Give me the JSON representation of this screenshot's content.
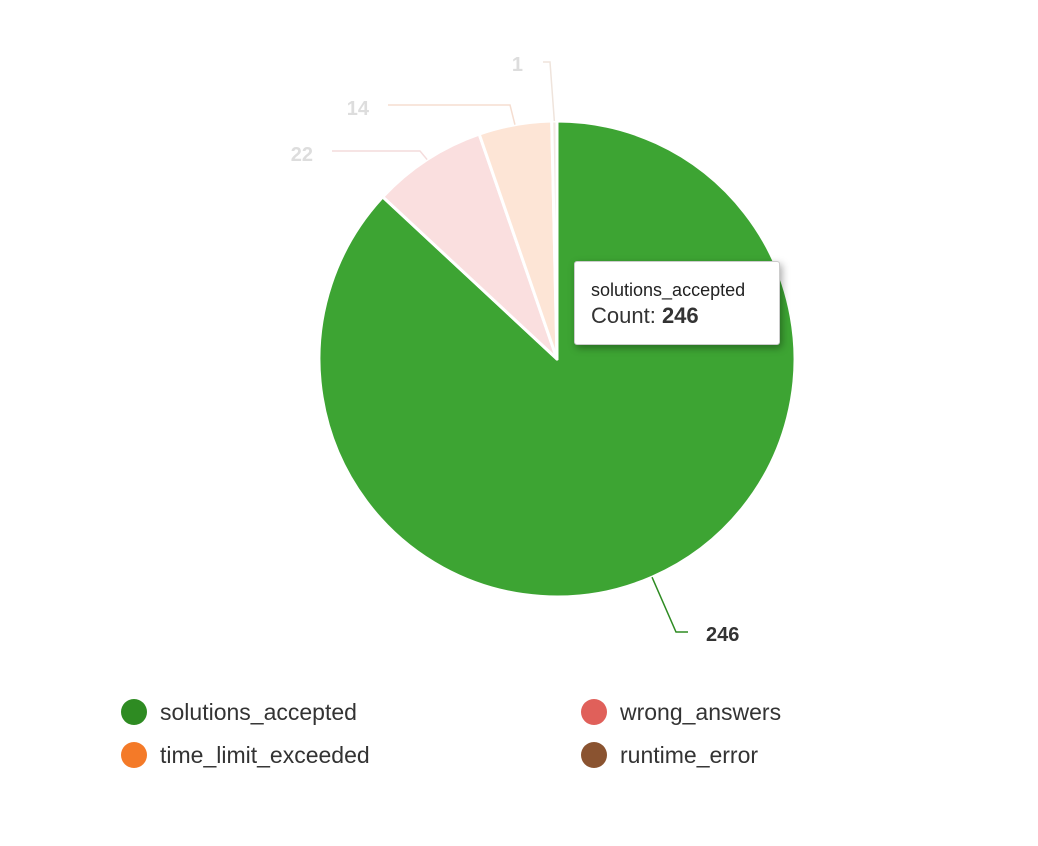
{
  "chart_data": {
    "type": "pie",
    "series_name": "Count",
    "categories": [
      "solutions_accepted",
      "wrong_answers",
      "time_limit_exceeded",
      "runtime_error"
    ],
    "values": [
      246,
      22,
      14,
      1
    ],
    "colors": [
      "#2e8b22",
      "#e0605a",
      "#f47a28",
      "#8a5330"
    ],
    "slice_fills": [
      "#3da433",
      "#fadfdf",
      "#fde5d6",
      "#f3e9e2"
    ],
    "data_labels": [
      "246",
      "22",
      "14",
      "1"
    ],
    "legend_position": "bottom"
  },
  "tooltip": {
    "title": "solutions_accepted",
    "series_label": "Count: ",
    "value": "246"
  }
}
